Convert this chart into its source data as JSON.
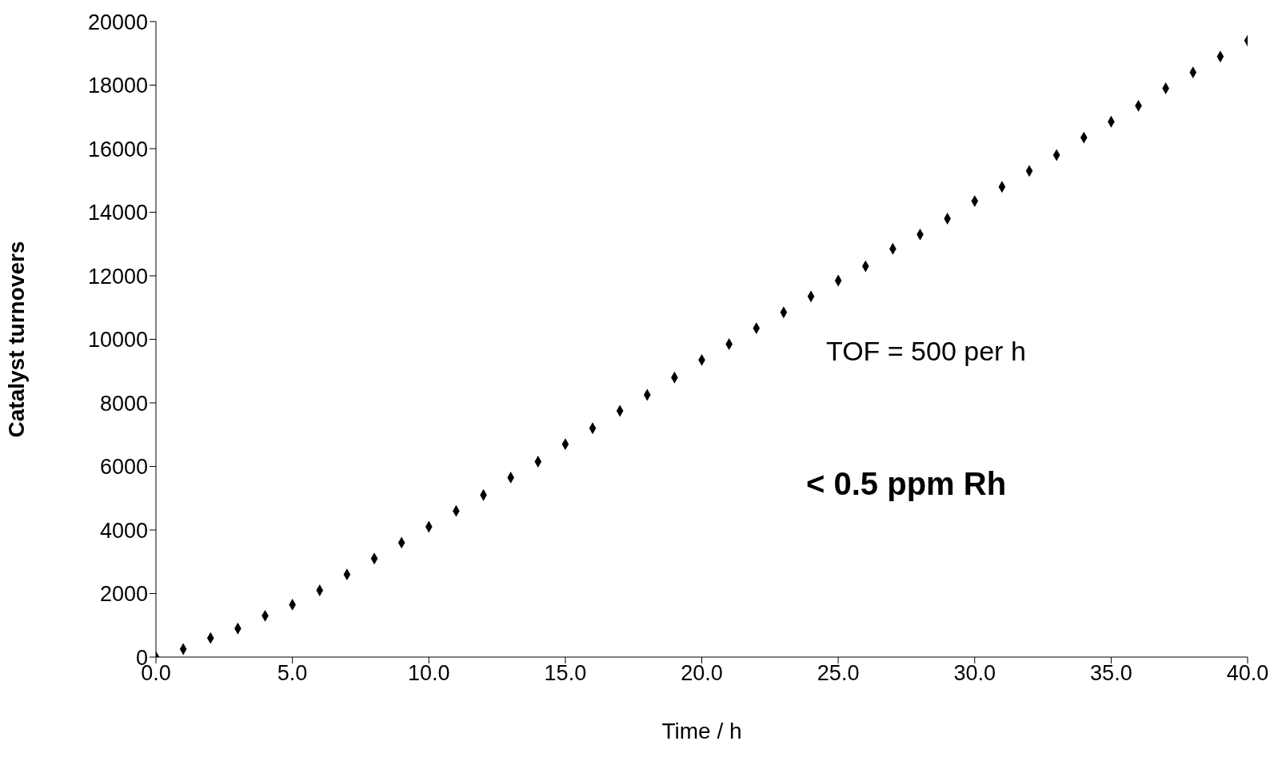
{
  "chart_data": {
    "type": "scatter",
    "xlabel": "Time / h",
    "ylabel": "Catalyst turnovers",
    "marker": "diamond",
    "grid": false,
    "legend": false,
    "xlim": [
      0,
      40
    ],
    "ylim": [
      0,
      20000
    ],
    "xticks": [
      {
        "value": 0,
        "label": "0.0"
      },
      {
        "value": 5,
        "label": "5.0"
      },
      {
        "value": 10,
        "label": "10.0"
      },
      {
        "value": 15,
        "label": "15.0"
      },
      {
        "value": 20,
        "label": "20.0"
      },
      {
        "value": 25,
        "label": "25.0"
      },
      {
        "value": 30,
        "label": "30.0"
      },
      {
        "value": 35,
        "label": "35.0"
      },
      {
        "value": 40,
        "label": "40.0"
      }
    ],
    "yticks": [
      0,
      2000,
      4000,
      6000,
      8000,
      10000,
      12000,
      14000,
      16000,
      18000,
      20000
    ],
    "annotations": [
      "TOF = 500 per h",
      "< 0.5 ppm Rh"
    ],
    "series": [
      {
        "color": "#000000",
        "x": [
          0,
          1,
          2,
          3,
          4,
          5,
          6,
          7,
          8,
          9,
          10,
          11,
          12,
          13,
          14,
          15,
          16,
          17,
          18,
          19,
          20,
          21,
          22,
          23,
          24,
          25,
          26,
          27,
          28,
          29,
          30,
          31,
          32,
          33,
          34,
          35,
          36,
          37,
          38,
          39,
          40
        ],
        "values": [
          0,
          250,
          600,
          900,
          1300,
          1650,
          2100,
          2600,
          3100,
          3600,
          4100,
          4600,
          5100,
          5650,
          6150,
          6700,
          7200,
          7750,
          8250,
          8800,
          9350,
          9850,
          10350,
          10850,
          11350,
          11850,
          12300,
          12850,
          13300,
          13800,
          14350,
          14800,
          15300,
          15800,
          16350,
          16850,
          17350,
          17900,
          18400,
          18900,
          19400
        ]
      }
    ]
  }
}
